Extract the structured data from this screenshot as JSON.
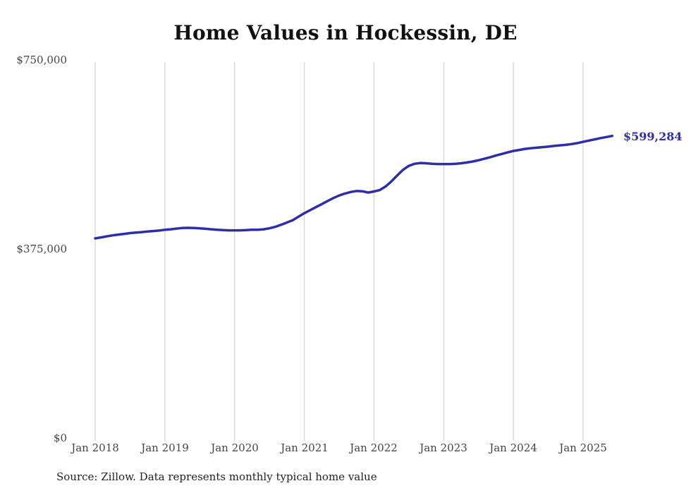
{
  "chart_data": {
    "type": "line",
    "title": "Home Values in Hockessin, DE",
    "xlabel": "",
    "ylabel": "",
    "ylim": [
      0,
      750000
    ],
    "grid": "vertical-only",
    "legend": "none",
    "x_tick_labels": [
      "Jan 2018",
      "Jan 2019",
      "Jan 2020",
      "Jan 2021",
      "Jan 2022",
      "Jan 2023",
      "Jan 2024",
      "Jan 2025"
    ],
    "y_ticks": [
      {
        "value": 750000,
        "label": "$750,000"
      },
      {
        "value": 375000,
        "label": "$375,000"
      },
      {
        "value": 0,
        "label": "$0"
      }
    ],
    "series": [
      {
        "name": "Monthly typical home value",
        "color": "#2e2ea6",
        "start_month": "Jan 2018",
        "interval": "monthly",
        "values": [
          396000,
          398000,
          400000,
          402000,
          403500,
          405000,
          406500,
          407500,
          408500,
          409500,
          410500,
          411500,
          413000,
          414000,
          415500,
          416500,
          417000,
          416500,
          416000,
          415000,
          414000,
          413000,
          412500,
          412000,
          412000,
          412000,
          412500,
          413000,
          413000,
          414000,
          416000,
          419000,
          423000,
          427500,
          432000,
          439000,
          446000,
          452000,
          458000,
          464000,
          470000,
          476000,
          481000,
          485000,
          488000,
          490000,
          489500,
          487000,
          489000,
          492000,
          499000,
          509000,
          521000,
          532000,
          540000,
          544000,
          545500,
          545000,
          544000,
          543500,
          543500,
          543500,
          544000,
          545000,
          546500,
          548500,
          551000,
          554000,
          557000,
          560500,
          563500,
          566500,
          569500,
          571500,
          573500,
          575000,
          576000,
          577000,
          578000,
          579500,
          580500,
          581500,
          583000,
          585000,
          587500,
          590000,
          592500,
          595000,
          597000,
          599284
        ]
      }
    ],
    "end_label": "$599,284",
    "source": "Source: Zillow. Data represents monthly typical home value"
  },
  "colors": {
    "line": "#2e2ea6",
    "grid": "#cccccc",
    "axis_text": "#444444",
    "title_text": "#111111",
    "source_text": "#222222",
    "background": "#ffffff"
  }
}
